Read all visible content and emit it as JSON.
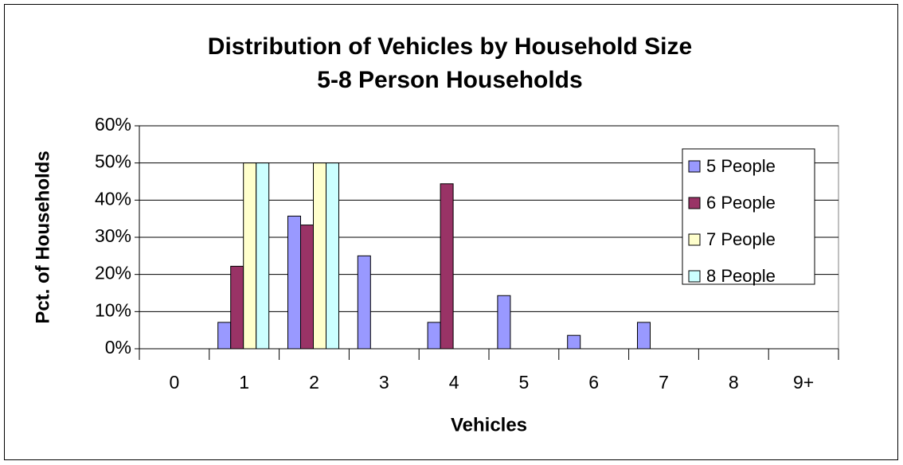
{
  "chart_data": {
    "type": "bar",
    "title": "Distribution of Vehicles by Household Size",
    "subtitle": "5-8 Person Households",
    "x_label": "Vehicles",
    "y_label": "Pct. of Households",
    "categories": [
      "0",
      "1",
      "2",
      "3",
      "4",
      "5",
      "6",
      "7",
      "8",
      "9+"
    ],
    "series": [
      {
        "name": "5 People",
        "color": "#9999ff",
        "values": [
          0,
          7.1,
          35.7,
          25,
          7.1,
          14.3,
          3.6,
          7.1,
          0,
          0
        ]
      },
      {
        "name": "6 People",
        "color": "#993366",
        "values": [
          0,
          22.2,
          33.3,
          0,
          44.4,
          0,
          0,
          0,
          0,
          0
        ]
      },
      {
        "name": "7 People",
        "color": "#ffffcc",
        "values": [
          0,
          50,
          50,
          0,
          0,
          0,
          0,
          0,
          0,
          0
        ]
      },
      {
        "name": "8 People",
        "color": "#ccffff",
        "values": [
          0,
          50,
          50,
          0,
          0,
          0,
          0,
          0,
          0,
          0
        ]
      }
    ],
    "ylim": [
      0,
      60
    ],
    "yticks": [
      {
        "value": 0,
        "label": "0%"
      },
      {
        "value": 10,
        "label": "10%"
      },
      {
        "value": 20,
        "label": "20%"
      },
      {
        "value": 30,
        "label": "30%"
      },
      {
        "value": 40,
        "label": "40%"
      },
      {
        "value": 50,
        "label": "50%"
      },
      {
        "value": 60,
        "label": "60%"
      }
    ],
    "grid": true,
    "legend": "upper right"
  }
}
